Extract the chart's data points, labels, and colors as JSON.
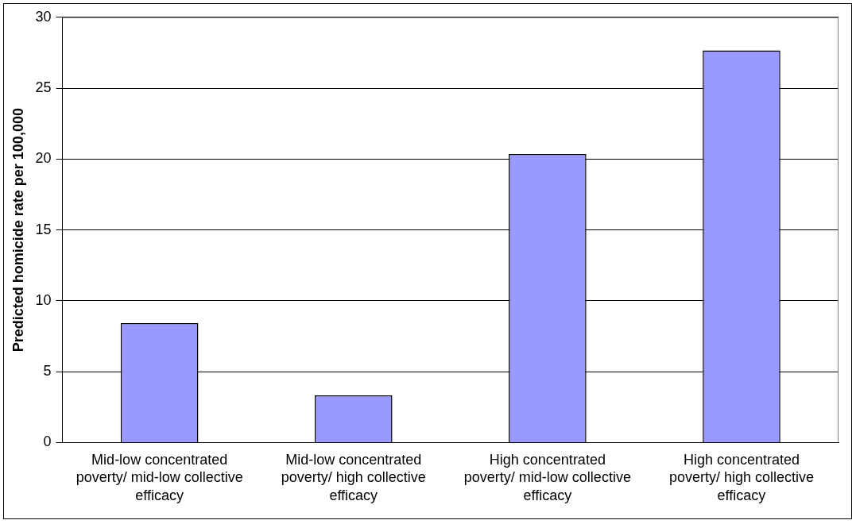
{
  "chart_data": {
    "type": "bar",
    "ylabel": "Predicted homicide rate per 100,000",
    "categories": [
      "Mid-low concentrated poverty/ mid-low collective efficacy",
      "Mid-low concentrated poverty/ high collective efficacy",
      "High concentrated poverty/ mid-low collective efficacy",
      "High concentrated poverty/ high collective efficacy"
    ],
    "values": [
      8.43,
      3.33,
      20.36,
      27.67
    ],
    "color": "#9999ff",
    "ylim": [
      0,
      30
    ],
    "yticks": [
      0,
      5,
      10,
      15,
      20,
      25,
      30
    ],
    "grid": "y",
    "legend": false
  }
}
